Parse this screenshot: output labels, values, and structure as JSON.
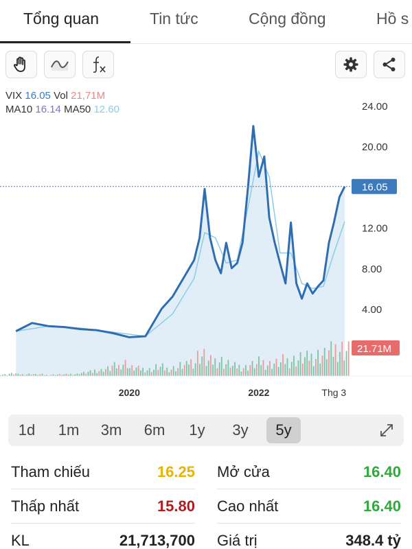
{
  "tabs": [
    "Tổng quan",
    "Tin tức",
    "Cộng đồng",
    "Hồ s"
  ],
  "toolbar": {
    "left_icons": [
      "hand-icon",
      "line-chart-icon",
      "function-icon"
    ],
    "right_icons": [
      "gear-icon",
      "share-icon"
    ]
  },
  "legend": {
    "symbol_label": "VIX",
    "symbol_value": "16.05",
    "vol_label": "Vol",
    "vol_value": "21,71M",
    "ma10_label": "MA10",
    "ma10_value": "16.14",
    "ma50_label": "MA50",
    "ma50_value": "12.60"
  },
  "chart_data": {
    "type": "area",
    "symbol": "VIX",
    "x_tick_labels": [
      "2020",
      "2022",
      "Thg 3"
    ],
    "y_tick_labels": [
      "24.00",
      "20.00",
      "12.00",
      "8.00",
      "4.00"
    ],
    "y_ticks": [
      24,
      20,
      12,
      8,
      4
    ],
    "ylim": [
      0,
      25
    ],
    "grid": false,
    "current_price": 16.05,
    "current_price_label": "16.05",
    "current_volume_label": "21.71M",
    "series": [
      {
        "name": "VIX",
        "x": [
          "2018-04",
          "2018-07",
          "2018-10",
          "2019-01",
          "2019-04",
          "2019-07",
          "2019-10",
          "2020-01",
          "2020-04",
          "2020-07",
          "2020-09",
          "2020-11",
          "2021-01",
          "2021-02",
          "2021-03",
          "2021-04",
          "2021-05",
          "2021-06",
          "2021-07",
          "2021-08",
          "2021-09",
          "2021-10",
          "2021-11",
          "2021-12",
          "2022-01",
          "2022-02",
          "2022-03",
          "2022-04",
          "2022-05",
          "2022-06",
          "2022-07",
          "2022-08",
          "2022-09",
          "2022-10",
          "2022-11",
          "2022-12",
          "2023-01",
          "2023-02",
          "2023-03",
          "2023-04",
          "2023-05"
        ],
        "values": [
          1.8,
          2.6,
          2.3,
          2.2,
          2.0,
          1.9,
          1.6,
          1.2,
          1.3,
          4.0,
          5.2,
          7.0,
          8.8,
          11.0,
          15.8,
          11.0,
          8.8,
          7.5,
          10.5,
          8.0,
          8.5,
          10.5,
          16.0,
          22.0,
          17.0,
          19.0,
          13.0,
          10.5,
          8.5,
          6.5,
          12.5,
          6.5,
          5.0,
          6.5,
          5.5,
          6.2,
          6.8,
          10.5,
          12.5,
          15.0,
          16.05
        ]
      },
      {
        "name": "MA50",
        "x": [
          "2018-04",
          "2018-10",
          "2019-04",
          "2019-10",
          "2020-04",
          "2020-09",
          "2021-01",
          "2021-03",
          "2021-05",
          "2021-07",
          "2021-09",
          "2021-11",
          "2022-01",
          "2022-03",
          "2022-05",
          "2022-07",
          "2022-09",
          "2022-11",
          "2023-01",
          "2023-03",
          "2023-05"
        ],
        "values": [
          1.8,
          2.3,
          2.1,
          1.7,
          1.3,
          3.5,
          7.0,
          11.5,
          11.0,
          8.5,
          8.8,
          14.0,
          19.5,
          17.0,
          9.5,
          9.5,
          6.5,
          6.0,
          6.2,
          9.5,
          12.6
        ]
      }
    ],
    "volume": [
      0.2,
      0.3,
      0.2,
      0.25,
      0.2,
      0.15,
      0.2,
      0.2,
      0.25,
      0.4,
      0.5,
      0.7,
      0.9,
      1.2,
      1.6,
      1.0,
      0.9,
      0.8,
      1.1,
      0.9,
      1.0,
      1.3,
      1.8,
      2.5,
      1.8,
      1.9,
      1.5,
      1.2,
      1.1,
      1.4,
      1.7,
      1.5,
      1.6,
      1.9,
      2.0,
      2.2,
      2.4,
      2.6,
      3.0,
      3.4,
      3.2
    ]
  },
  "range_buttons": [
    "1d",
    "1m",
    "3m",
    "6m",
    "1y",
    "3y",
    "5y"
  ],
  "range_selected": "5y",
  "stats": {
    "tham_chieu_label": "Tham chiếu",
    "tham_chieu_value": "16.25",
    "mo_cua_label": "Mở cửa",
    "mo_cua_value": "16.40",
    "thap_nhat_label": "Thấp nhất",
    "thap_nhat_value": "15.80",
    "cao_nhat_label": "Cao nhất",
    "cao_nhat_value": "16.40",
    "kl_label": "KL",
    "kl_value": "21,713,700",
    "gia_tri_label": "Giá trị",
    "gia_tri_value": "348.4 tỷ"
  },
  "colors": {
    "price_line": "#2f6db3",
    "ma_line": "#8ccbe8",
    "area_fill": "#dcebf7",
    "price_badge": "#3b7bbd",
    "volume_badge": "#e86b6b",
    "vol_up": "#7fc4a0",
    "vol_down": "#ee9a9a",
    "value_yellow": "#e8b400",
    "value_red": "#b31b1b",
    "value_green": "#2eaa3a"
  }
}
